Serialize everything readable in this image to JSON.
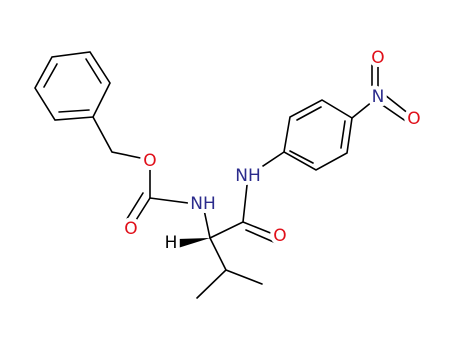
{
  "atom_labels": [
    "O",
    "O",
    "NH",
    "H",
    "O",
    "NH",
    "N",
    "O",
    "O"
  ]
}
